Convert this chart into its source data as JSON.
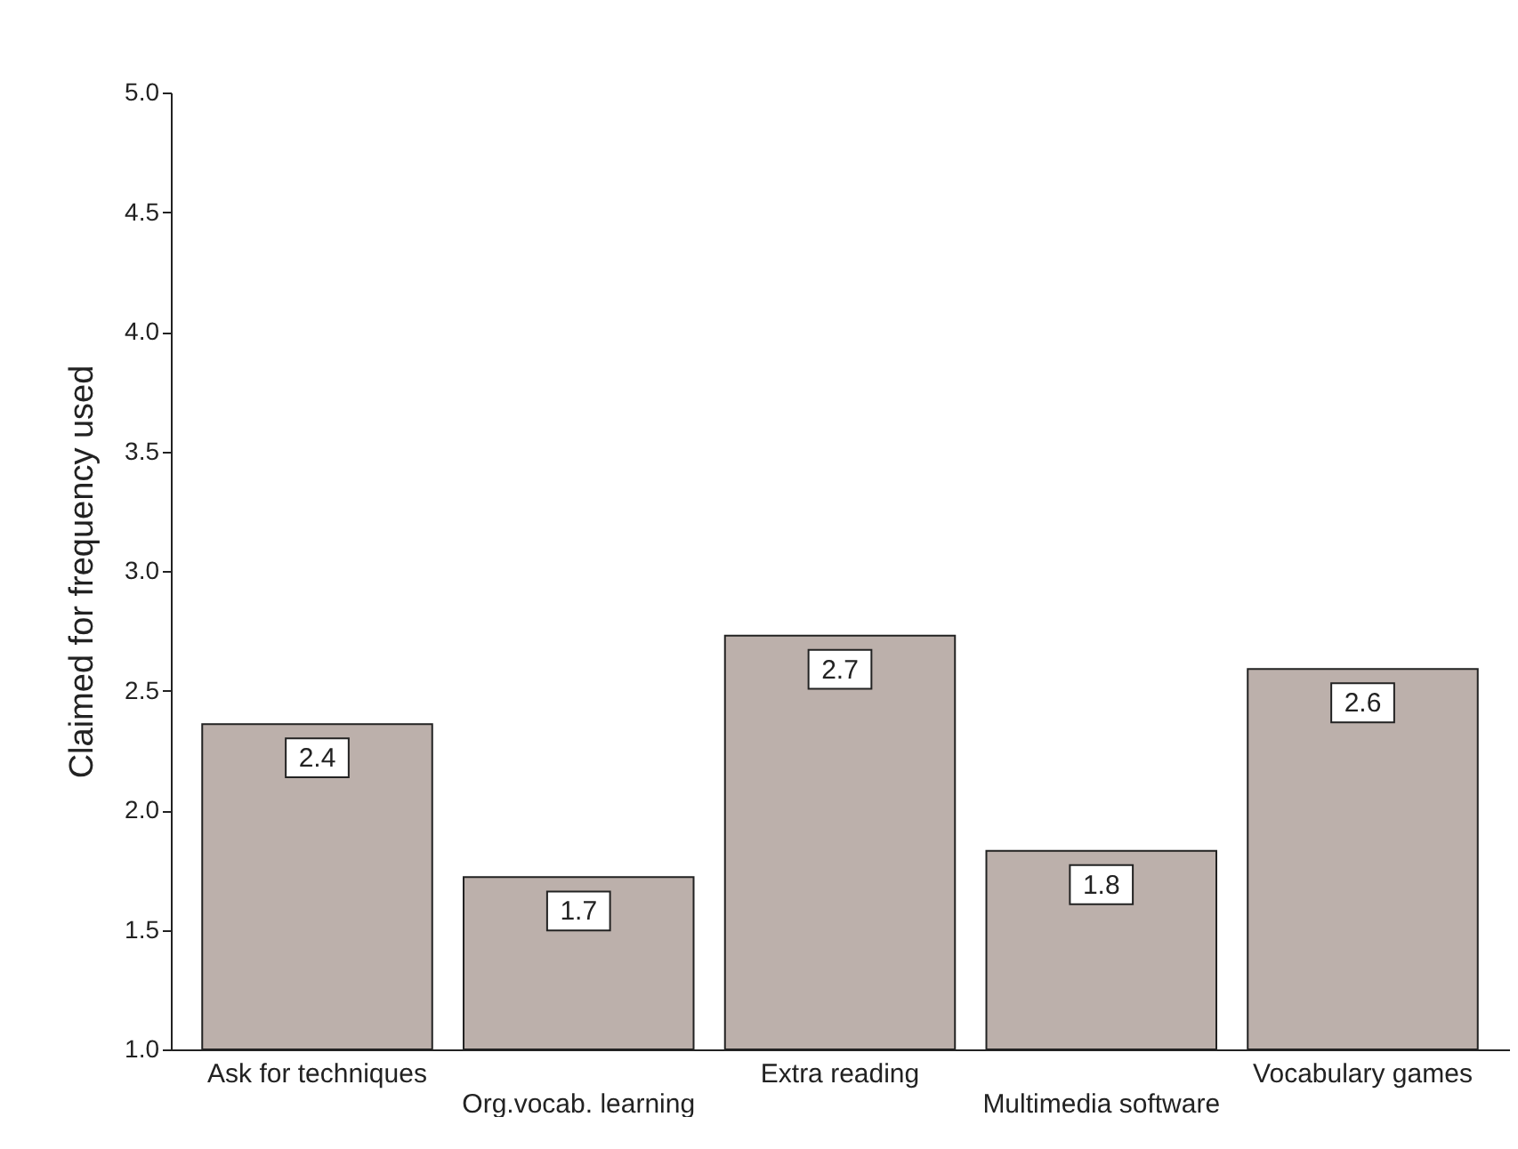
{
  "chart_data": {
    "type": "bar",
    "ylabel": "Claimed for frequency used",
    "categories": [
      "Ask for techniques",
      "Org.vocab. learning",
      "Extra reading",
      "Multimedia software",
      "Vocabulary games"
    ],
    "values": [
      2.36,
      1.72,
      2.73,
      1.83,
      2.59
    ],
    "value_labels": [
      "2.4",
      "1.7",
      "2.7",
      "1.8",
      "2.6"
    ],
    "color": "#bcb0ab",
    "ylim": [
      1,
      5
    ],
    "yticks": [
      {
        "value": 1,
        "label": "1.0"
      },
      {
        "value": 1.5,
        "label": "1.5"
      },
      {
        "value": 2,
        "label": "2.0"
      },
      {
        "value": 2.5,
        "label": "2.5"
      },
      {
        "value": 3,
        "label": "3.0"
      },
      {
        "value": 3.5,
        "label": "3.5"
      },
      {
        "value": 4,
        "label": "4.0"
      },
      {
        "value": 4.5,
        "label": "4.5"
      },
      {
        "value": 5,
        "label": "5.0"
      }
    ],
    "grid": false
  }
}
